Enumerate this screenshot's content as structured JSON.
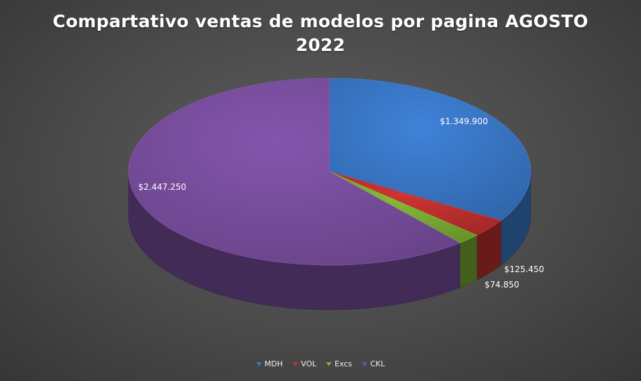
{
  "chart_data": {
    "type": "pie",
    "title_lines": [
      "Compartativo ventas de modelos por pagina AGOSTO",
      "2022"
    ],
    "categories": [
      "MDH",
      "VOL",
      "Excs",
      "CKL"
    ],
    "values": [
      1349900,
      125450,
      74850,
      2447250
    ],
    "value_labels": [
      "$1.349.900",
      "$125.450",
      "$74.850",
      "$2.447.250"
    ],
    "colors": [
      "#3a78c8",
      "#c0302e",
      "#7aad32",
      "#7a4fa0"
    ],
    "legend_position": "bottom",
    "style": "3d"
  }
}
